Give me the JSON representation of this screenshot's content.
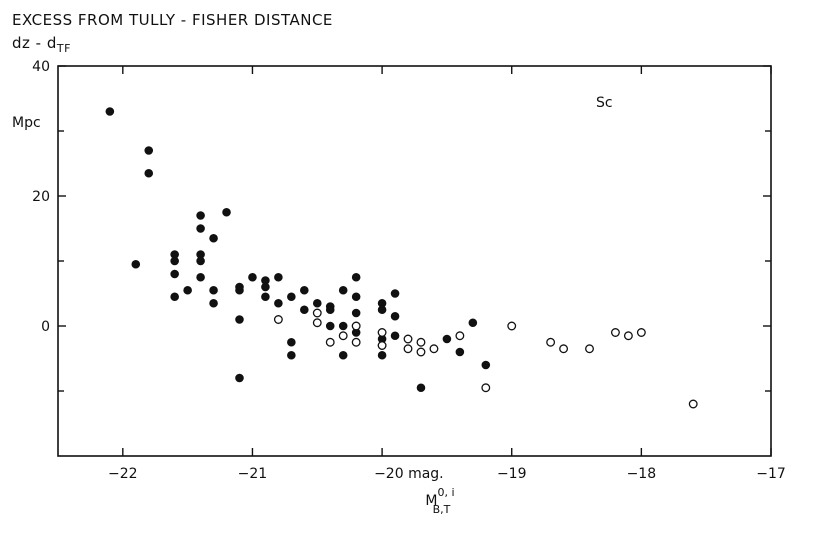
{
  "chart_data": {
    "type": "scatter",
    "title_line1": "EXCESS FROM TULLY - FISHER DISTANCE",
    "title_line2_main": "dz - d",
    "title_line2_sub": "TF",
    "ylabel": "Mpc",
    "xlabel_main": "M",
    "xlabel_sub": "B,T",
    "xlabel_sup": "0, i",
    "annotation": "Sc",
    "xlim": [
      -22.5,
      -17
    ],
    "ylim": [
      -20,
      40
    ],
    "xticks": [
      -22,
      -21,
      -20,
      -19,
      -18,
      -17
    ],
    "xtick_labels": [
      "−22",
      "−21",
      "−20 mag.",
      "−19",
      "−18",
      "−17"
    ],
    "yticks": [
      0,
      20,
      40
    ],
    "ytick_labels": [
      "0",
      "20",
      "40"
    ],
    "minor_yticks": [
      10,
      30,
      -10
    ],
    "grid": false,
    "series": [
      {
        "marker": "filled",
        "points": [
          [
            -22.1,
            33
          ],
          [
            -21.8,
            27
          ],
          [
            -21.8,
            23.5
          ],
          [
            -21.9,
            9.5
          ],
          [
            -21.6,
            11
          ],
          [
            -21.6,
            10
          ],
          [
            -21.6,
            8
          ],
          [
            -21.6,
            4.5
          ],
          [
            -21.5,
            5.5
          ],
          [
            -21.4,
            17
          ],
          [
            -21.4,
            15
          ],
          [
            -21.4,
            11
          ],
          [
            -21.4,
            10
          ],
          [
            -21.4,
            7.5
          ],
          [
            -21.3,
            13.5
          ],
          [
            -21.3,
            5.5
          ],
          [
            -21.3,
            3.5
          ],
          [
            -21.2,
            17.5
          ],
          [
            -21.1,
            6
          ],
          [
            -21.1,
            5.5
          ],
          [
            -21.1,
            1
          ],
          [
            -21.1,
            -8
          ],
          [
            -21.0,
            7.5
          ],
          [
            -20.9,
            7
          ],
          [
            -20.9,
            6
          ],
          [
            -20.9,
            4.5
          ],
          [
            -20.8,
            7.5
          ],
          [
            -20.8,
            3.5
          ],
          [
            -20.7,
            4.5
          ],
          [
            -20.7,
            -2.5
          ],
          [
            -20.7,
            -4.5
          ],
          [
            -20.6,
            5.5
          ],
          [
            -20.6,
            2.5
          ],
          [
            -20.5,
            3.5
          ],
          [
            -20.4,
            3
          ],
          [
            -20.4,
            2.5
          ],
          [
            -20.4,
            0
          ],
          [
            -20.3,
            5.5
          ],
          [
            -20.3,
            0
          ],
          [
            -20.3,
            -4.5
          ],
          [
            -20.2,
            7.5
          ],
          [
            -20.2,
            4.5
          ],
          [
            -20.2,
            2
          ],
          [
            -20.2,
            0
          ],
          [
            -20.2,
            -1
          ],
          [
            -20.0,
            3.5
          ],
          [
            -20.0,
            2.5
          ],
          [
            -20.0,
            -2
          ],
          [
            -20.0,
            -3
          ],
          [
            -20.0,
            -4.5
          ],
          [
            -19.9,
            5
          ],
          [
            -19.9,
            1.5
          ],
          [
            -19.9,
            -1.5
          ],
          [
            -19.7,
            -9.5
          ],
          [
            -19.5,
            -2
          ],
          [
            -19.4,
            -4
          ],
          [
            -19.3,
            0.5
          ],
          [
            -19.2,
            -6
          ]
        ]
      },
      {
        "marker": "open",
        "points": [
          [
            -20.8,
            1
          ],
          [
            -20.5,
            2
          ],
          [
            -20.5,
            0.5
          ],
          [
            -20.4,
            -2.5
          ],
          [
            -20.3,
            -1.5
          ],
          [
            -20.2,
            0
          ],
          [
            -20.2,
            -2.5
          ],
          [
            -20.0,
            -1
          ],
          [
            -20.0,
            -3
          ],
          [
            -19.8,
            -2
          ],
          [
            -19.8,
            -3.5
          ],
          [
            -19.7,
            -2.5
          ],
          [
            -19.7,
            -4
          ],
          [
            -19.6,
            -3.5
          ],
          [
            -19.4,
            -1.5
          ],
          [
            -19.2,
            -9.5
          ],
          [
            -19.0,
            0
          ],
          [
            -18.7,
            -2.5
          ],
          [
            -18.6,
            -3.5
          ],
          [
            -18.4,
            -3.5
          ],
          [
            -18.2,
            -1
          ],
          [
            -18.1,
            -1.5
          ],
          [
            -18.0,
            -1
          ],
          [
            -17.6,
            -12
          ]
        ]
      }
    ]
  }
}
